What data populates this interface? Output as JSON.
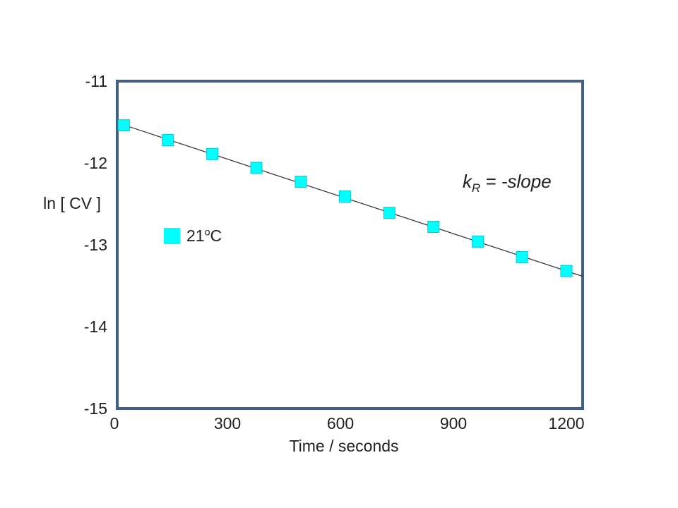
{
  "chart_data": {
    "type": "scatter",
    "title": "",
    "xlabel": "Time / seconds",
    "ylabel": "ln [ CV ]",
    "xlim": [
      0,
      1245
    ],
    "ylim": [
      -15,
      -11
    ],
    "xticks": [
      0,
      300,
      600,
      900,
      1200
    ],
    "yticks": [
      -11,
      -12,
      -13,
      -14,
      -15
    ],
    "xtick_labels": [
      "0",
      "300",
      "600",
      "900",
      "1200"
    ],
    "ytick_labels": [
      "-11",
      "-12",
      "-13",
      "-14",
      "-15"
    ],
    "grid": false,
    "legend_position": "inside-left",
    "series": [
      {
        "name": "21°C",
        "marker": "square",
        "marker_color": "#00ffff",
        "marker_edge_color": "#00c9d6",
        "marker_size": 16,
        "x": [
          25,
          142,
          260,
          377,
          495,
          612,
          730,
          847,
          965,
          1082,
          1200
        ],
        "y": [
          -11.54,
          -11.72,
          -11.89,
          -12.06,
          -12.23,
          -12.41,
          -12.61,
          -12.78,
          -12.96,
          -13.15,
          -13.32
        ]
      }
    ],
    "trendline": {
      "x1": 25,
      "y1": -11.535,
      "x2": 1243,
      "y2": -13.385,
      "color": "#3a3a3a"
    },
    "annotation": {
      "pre": "k",
      "sub": "R",
      "post": " = -slope"
    },
    "legend": {
      "num": "21",
      "sup": "o",
      "unit": "C"
    }
  },
  "colors": {
    "plot_border": "#3f5f87",
    "background": "#ffffff",
    "text": "#1f1f1f",
    "marker": "#00ffff",
    "trendline": "#3a3a3a"
  }
}
